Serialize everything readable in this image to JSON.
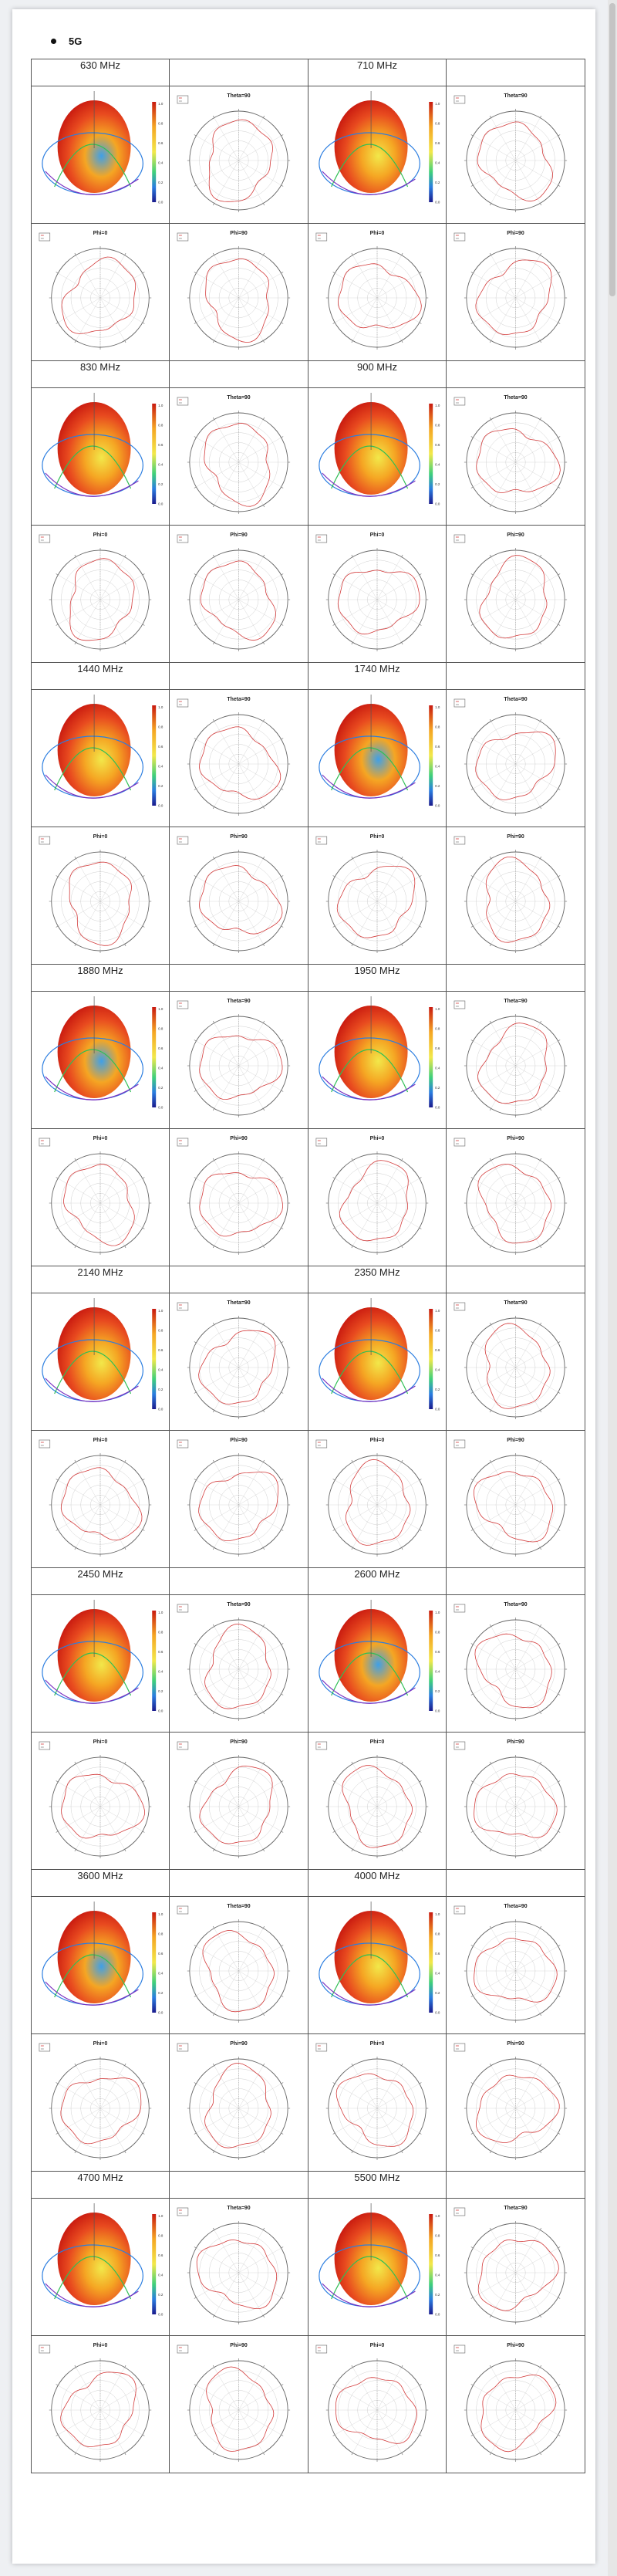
{
  "section": {
    "bullet_label": "5G"
  },
  "plot_labels": {
    "theta90": "Theta=90",
    "phi0": "Phi=0",
    "phi90": "Phi=90"
  },
  "colorbar_ticks": [
    "1.0",
    "0.8",
    "0.6",
    "0.4",
    "0.2",
    "0.0"
  ],
  "colors": {
    "grid_line": "#555555",
    "polar_trace": "#d33b3b",
    "polar_grid": "#cfcfcf"
  },
  "blocks": [
    {
      "left": "630 MHz",
      "right": "710 MHz"
    },
    {
      "left": "830 MHz",
      "right": "900 MHz"
    },
    {
      "left": "1440 MHz",
      "right": "1740 MHz"
    },
    {
      "left": "1880 MHz",
      "right": "1950 MHz"
    },
    {
      "left": "2140 MHz",
      "right": "2350 MHz"
    },
    {
      "left": "2450 MHz",
      "right": "2600 MHz"
    },
    {
      "left": "3600 MHz",
      "right": "4000 MHz"
    },
    {
      "left": "4700 MHz",
      "right": "5500 MHz"
    }
  ]
}
